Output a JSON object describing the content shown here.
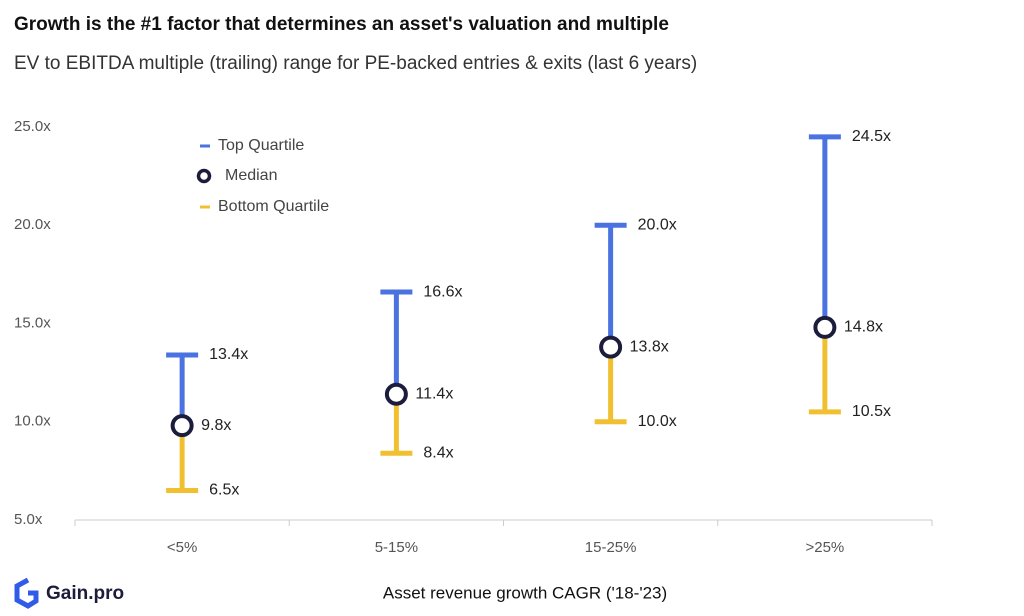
{
  "chart_data": {
    "type": "range",
    "title": "Growth is the #1 factor that determines an asset's valuation and multiple",
    "subtitle": "EV to EBITDA multiple (trailing) range for PE-backed entries & exits (last 6 years)",
    "x_label": "Asset revenue growth CAGR ('18-'23)",
    "categories": [
      "<5%",
      "5-15%",
      "15-25%",
      ">25%"
    ],
    "series": [
      {
        "name": "Top Quartile",
        "color": "#4a72e0",
        "values": [
          13.4,
          16.6,
          20.0,
          24.5
        ],
        "value_labels": [
          "13.4x",
          "16.6x",
          "20.0x",
          "24.5x"
        ]
      },
      {
        "name": "Median",
        "color": "#1c1c3c",
        "values": [
          9.8,
          11.4,
          13.8,
          14.8
        ],
        "value_labels": [
          "9.8x",
          "11.4x",
          "13.8x",
          "14.8x"
        ]
      },
      {
        "name": "Bottom Quartile",
        "color": "#f0c030",
        "values": [
          6.5,
          8.4,
          10.0,
          10.5
        ],
        "value_labels": [
          "6.5x",
          "8.4x",
          "10.0x",
          "10.5x"
        ]
      }
    ],
    "ylim": [
      5,
      25
    ],
    "yticks": [
      {
        "value": 5,
        "label": "5.0x"
      },
      {
        "value": 10,
        "label": "10.0x"
      },
      {
        "value": 15,
        "label": "15.0x"
      },
      {
        "value": 20,
        "label": "20.0x"
      },
      {
        "value": 25,
        "label": "25.0x"
      }
    ],
    "grid": false,
    "legend": "upper-left"
  },
  "footer": {
    "logo": "Gain.pro"
  }
}
